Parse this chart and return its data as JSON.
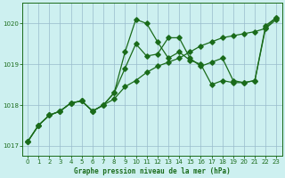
{
  "title": "Graphe pression niveau de la mer (hPa)",
  "background_color": "#cdf0f0",
  "plot_bg_color": "#cdf0f0",
  "grid_color": "#99bbcc",
  "line_color": "#1a6b1a",
  "xlim": [
    -0.5,
    23.5
  ],
  "ylim": [
    1016.75,
    1020.5
  ],
  "yticks": [
    1017,
    1018,
    1019,
    1020
  ],
  "xticks": [
    0,
    1,
    2,
    3,
    4,
    5,
    6,
    7,
    8,
    9,
    10,
    11,
    12,
    13,
    14,
    15,
    16,
    17,
    18,
    19,
    20,
    21,
    22,
    23
  ],
  "series1_x": [
    0,
    1,
    2,
    3,
    4,
    5,
    6,
    7,
    8,
    9,
    10,
    11,
    12,
    13,
    14,
    15,
    16,
    17,
    18,
    19,
    20,
    21,
    22,
    23
  ],
  "series1_y": [
    1017.1,
    1017.5,
    1017.75,
    1017.85,
    1018.05,
    1018.1,
    1017.85,
    1018.0,
    1018.15,
    1018.45,
    1018.6,
    1018.8,
    1018.95,
    1019.05,
    1019.15,
    1019.3,
    1019.45,
    1019.55,
    1019.65,
    1019.7,
    1019.75,
    1019.8,
    1019.88,
    1020.1
  ],
  "series2_x": [
    0,
    1,
    2,
    3,
    4,
    5,
    6,
    7,
    8,
    9,
    10,
    11,
    12,
    13,
    14,
    15,
    16,
    17,
    18,
    19,
    20,
    21,
    22,
    23
  ],
  "series2_y": [
    1017.1,
    1017.5,
    1017.75,
    1017.85,
    1018.05,
    1018.1,
    1017.85,
    1018.0,
    1018.3,
    1019.3,
    1020.1,
    1020.0,
    1019.55,
    1019.15,
    1019.3,
    1019.1,
    1019.0,
    1018.5,
    1018.6,
    1018.55,
    1018.55,
    1018.6,
    1019.9,
    1020.15
  ],
  "series3_x": [
    0,
    1,
    2,
    3,
    4,
    5,
    6,
    7,
    8,
    9,
    10,
    11,
    12,
    13,
    14,
    15,
    16,
    17,
    18,
    19,
    20,
    21,
    22,
    23
  ],
  "series3_y": [
    1017.1,
    1017.5,
    1017.75,
    1017.85,
    1018.05,
    1018.1,
    1017.85,
    1018.0,
    1018.3,
    1018.9,
    1019.5,
    1019.2,
    1019.25,
    1019.65,
    1019.65,
    1019.15,
    1018.95,
    1019.05,
    1019.15,
    1018.6,
    1018.55,
    1018.6,
    1019.95,
    1020.15
  ]
}
